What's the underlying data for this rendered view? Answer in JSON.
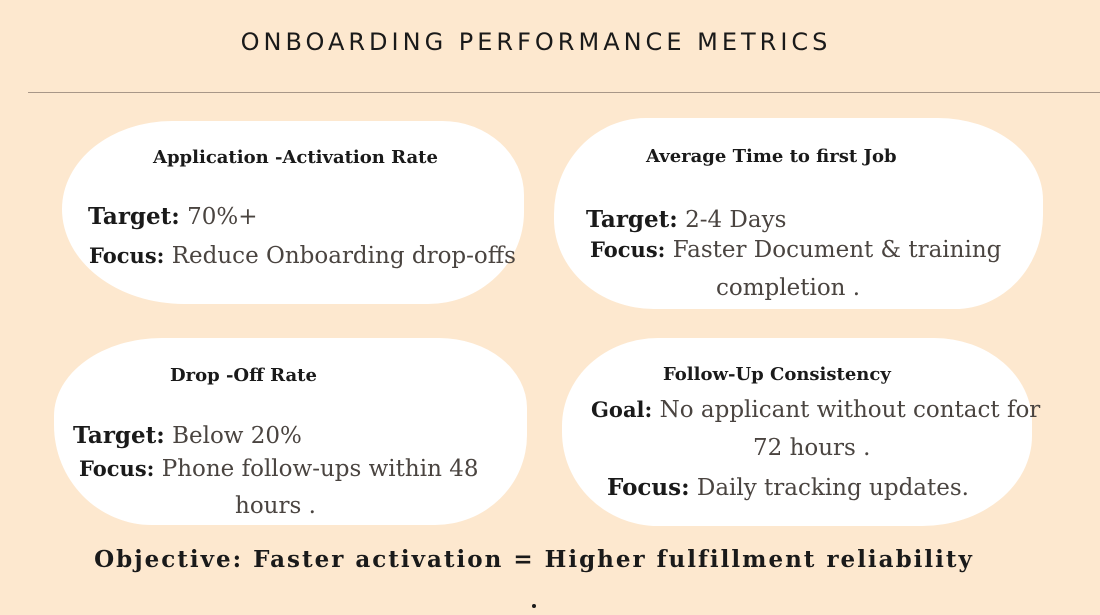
{
  "title": "ONBOARDING PERFORMANCE METRICS",
  "cards": [
    {
      "heading": "Application -Activation Rate",
      "line1_label": "Target:",
      "line1_value": "70%+",
      "line2_label": "Focus:",
      "line2_value": "Reduce Onboarding drop-offs"
    },
    {
      "heading": "Average Time to first Job",
      "line1_label": "Target:",
      "line1_value": "2-4 Days",
      "line2_label": "Focus:",
      "line2_value": "Faster Document & training",
      "line2_cont": "completion ."
    },
    {
      "heading": "Drop -Off Rate",
      "line1_label": "Target:",
      "line1_value": "Below 20%",
      "line2_label": "Focus:",
      "line2_value": "Phone follow-ups within 48",
      "line2_cont": "hours ."
    },
    {
      "heading": "Follow-Up Consistency",
      "line1_label": "Goal:",
      "line1_value": "No applicant without contact for",
      "line1_cont": "72 hours .",
      "line2_label": "Focus:",
      "line2_value": "Daily tracking updates."
    }
  ],
  "objective": "Objective: Faster activation = Higher fulfillment reliability"
}
